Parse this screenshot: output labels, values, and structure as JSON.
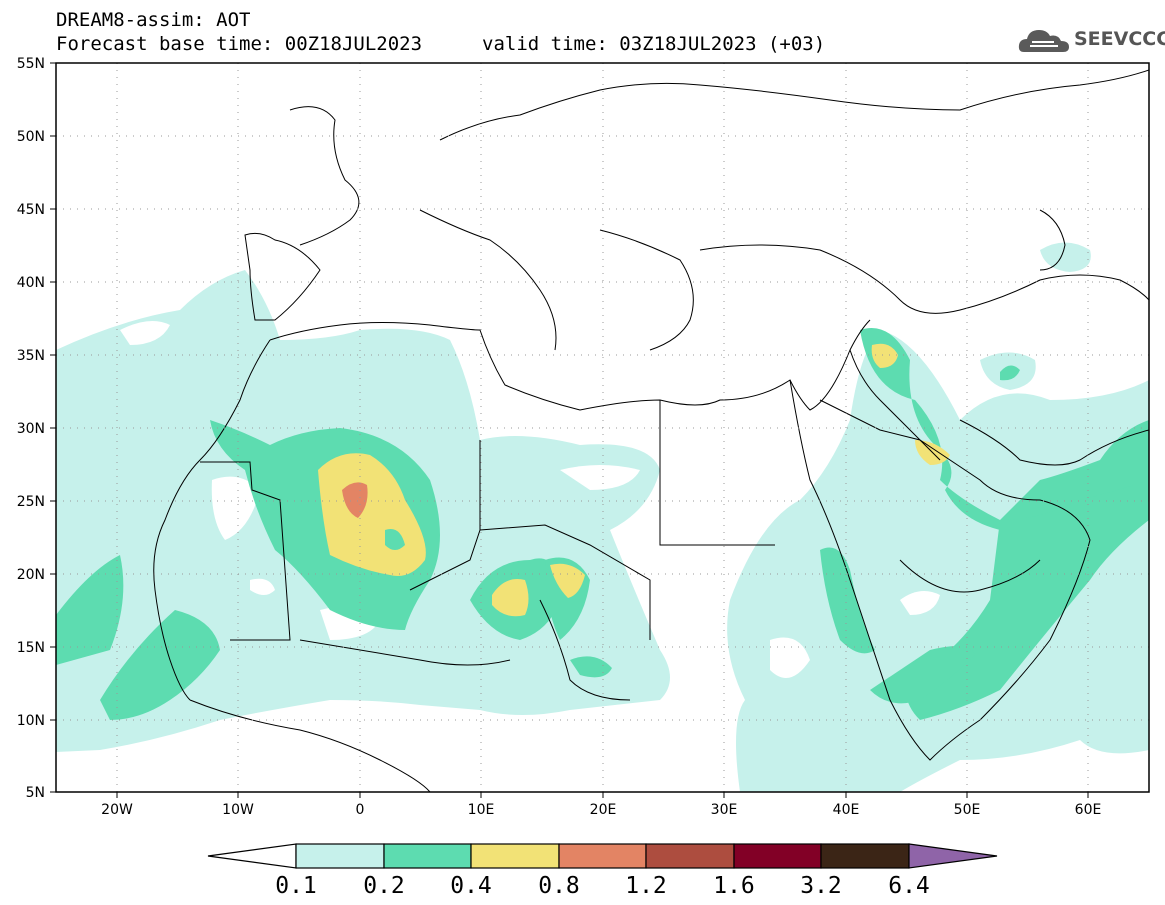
{
  "header": {
    "title": "DREAM8-assim: AOT",
    "base_time": "Forecast base time: 00Z18JUL2023",
    "valid_time": "valid time: 03Z18JUL2023 (+03)"
  },
  "logo": {
    "text": "SEEVCCC",
    "icon": "cloud-icon"
  },
  "map": {
    "lat_labels": [
      "55N",
      "50N",
      "45N",
      "40N",
      "35N",
      "30N",
      "25N",
      "20N",
      "15N",
      "10N",
      "5N"
    ],
    "lon_labels": [
      "20W",
      "10W",
      "0",
      "10E",
      "20E",
      "30E",
      "40E",
      "50E",
      "60E"
    ],
    "colors": {
      "level_0_1": "#c6f1eb",
      "level_0_2": "#5ddcb0",
      "level_0_4": "#f2e276",
      "level_0_8": "#e38464",
      "level_1_2": "#ad4d3f",
      "level_1_6": "#820026",
      "level_3_2": "#3b2516",
      "level_6_4": "#8f64a8"
    }
  },
  "colorbar": {
    "labels": [
      "0.1",
      "0.2",
      "0.4",
      "0.8",
      "1.2",
      "1.6",
      "3.2",
      "6.4"
    ]
  }
}
